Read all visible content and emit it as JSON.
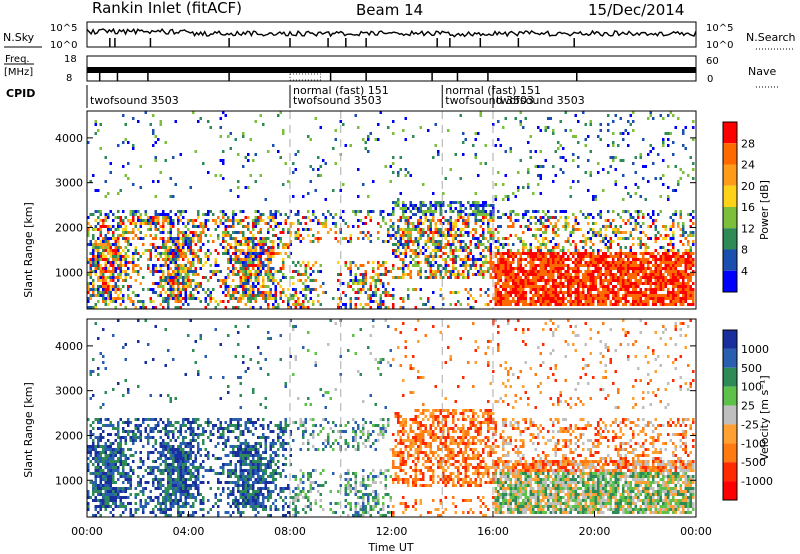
{
  "header": {
    "station": "Rankin Inlet (fitACF)",
    "beam": "Beam 14",
    "date": "15/Dec/2014"
  },
  "chart_data": [
    {
      "type": "line",
      "panel": "noise",
      "left_label": "N.Sky",
      "right_label": "N.Search",
      "left_ticks": [
        "10^5",
        "10^0"
      ],
      "right_ticks": [
        "10^5",
        "10^0"
      ]
    },
    {
      "type": "line",
      "panel": "frequency",
      "left_label_top": "Freq.",
      "left_label_bottom": "[MHz]",
      "right_label": "Nave",
      "left_ticks": [
        "18",
        "8"
      ],
      "right_ticks": [
        "60",
        "0"
      ]
    },
    {
      "type": "table",
      "panel": "cpid",
      "label": "CPID",
      "entries": [
        {
          "text": "twofsound 3503",
          "start_hour": 0,
          "row": 1
        },
        {
          "text": "normal (fast) 151",
          "start_hour": 8,
          "row": 0
        },
        {
          "text": "twofsound 3503",
          "start_hour": 8,
          "row": 1
        },
        {
          "text": "normal (fast) 151",
          "start_hour": 14,
          "row": 0
        },
        {
          "text": "twofsound 3503",
          "start_hour": 14,
          "row": 1
        },
        {
          "text": "twofsound 3503",
          "start_hour": 16,
          "row": 1
        }
      ],
      "divisions_hours": [
        8,
        14,
        16
      ]
    },
    {
      "type": "heatmap",
      "panel": "power",
      "ylabel": "Slant Range [km]",
      "yticks": [
        "1000",
        "2000",
        "3000",
        "4000"
      ],
      "ylim": [
        180,
        4600
      ],
      "xlim": [
        0,
        24
      ],
      "colorbar_label": "Power [dB]",
      "colorbar_ticks": [
        "28",
        "24",
        "20",
        "16",
        "12",
        "8",
        "4"
      ],
      "colors": [
        "#0000ff",
        "#1a4fb0",
        "#2e8b57",
        "#7cbf3a",
        "#ffd21a",
        "#ff9b1a",
        "#ff6a00",
        "#ff0000"
      ]
    },
    {
      "type": "heatmap",
      "panel": "velocity",
      "ylabel": "Slant Range [km]",
      "yticks": [
        "1000",
        "2000",
        "3000",
        "4000"
      ],
      "ylim": [
        180,
        4600
      ],
      "xlim": [
        0,
        24
      ],
      "xticks": [
        "00:00",
        "04:00",
        "08:00",
        "12:00",
        "16:00",
        "20:00",
        "00:00"
      ],
      "xlabel": "Time UT",
      "colorbar_label": "Velocity [m s⁻¹]",
      "colorbar_ticks": [
        "1000",
        "500",
        "100",
        "25",
        "-25",
        "-100",
        "-500",
        "-1000"
      ],
      "colors": [
        "#1a2f9e",
        "#2a5fb0",
        "#2e8b57",
        "#5ec24a",
        "#bfbfbf",
        "#ffa033",
        "#ff7a10",
        "#ff2a00",
        "#ff0000"
      ]
    }
  ]
}
